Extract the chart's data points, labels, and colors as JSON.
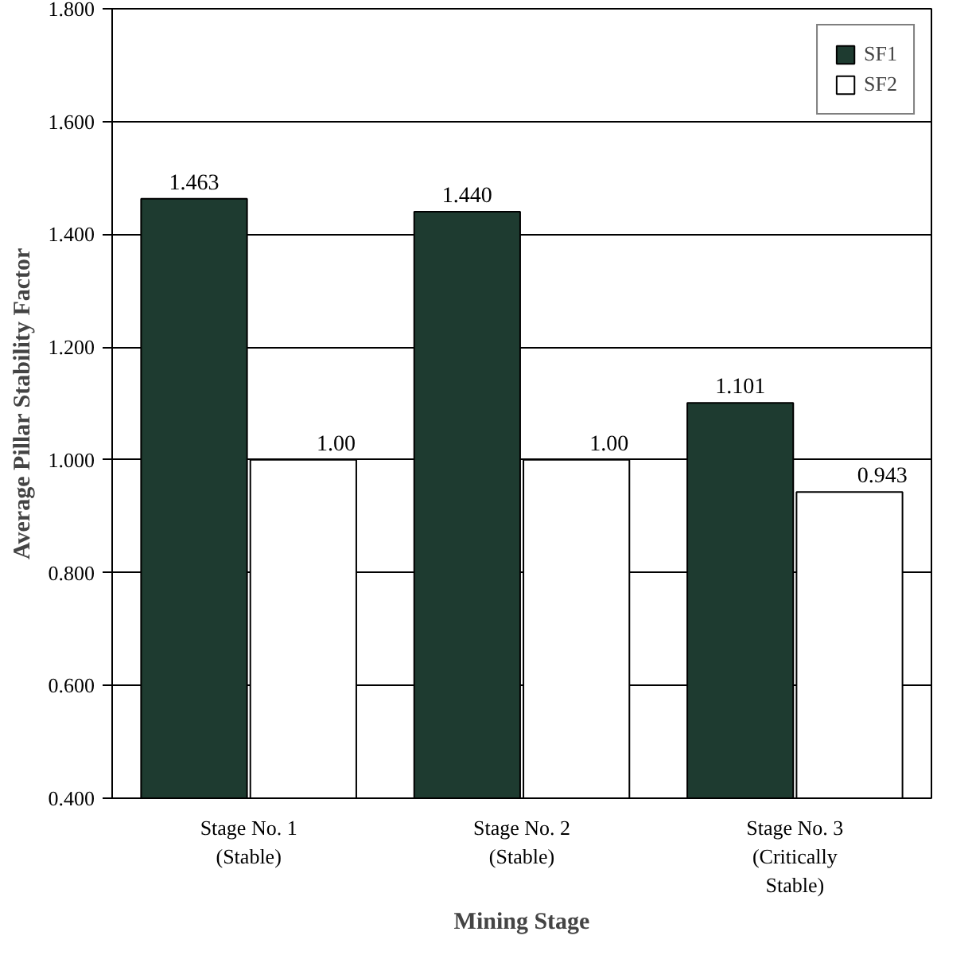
{
  "chart_data": {
    "type": "bar",
    "xlabel": "Mining Stage",
    "ylabel": "Average Pillar Stability Factor",
    "categories": [
      "Stage No. 1\n(Stable)",
      "Stage No. 2\n(Stable)",
      "Stage No. 3\n(Critically\nStable)"
    ],
    "series": [
      {
        "name": "SF1",
        "color": "#1e3b30",
        "values": [
          1.463,
          1.44,
          1.101
        ],
        "value_labels": [
          "1.463",
          "1.440",
          "1.101"
        ]
      },
      {
        "name": "SF2",
        "color": "#ffffff",
        "values": [
          1.0,
          1.0,
          0.943
        ],
        "value_labels": [
          "1.00",
          "1.00",
          "0.943"
        ]
      }
    ],
    "ylim": [
      0.4,
      1.8
    ],
    "yticks": [
      {
        "value": 0.4,
        "label": "0.400"
      },
      {
        "value": 0.6,
        "label": "0.600"
      },
      {
        "value": 0.8,
        "label": "0.800"
      },
      {
        "value": 1.0,
        "label": "1.000"
      },
      {
        "value": 1.2,
        "label": "1.200"
      },
      {
        "value": 1.4,
        "label": "1.400"
      },
      {
        "value": 1.6,
        "label": "1.600"
      },
      {
        "value": 1.8,
        "label": "1.800"
      }
    ],
    "grid": "y",
    "legend": "top right"
  }
}
